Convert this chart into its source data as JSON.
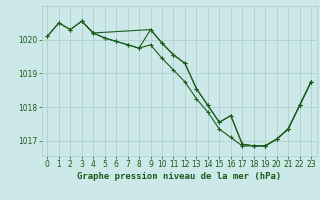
{
  "background_color": "#cce8e8",
  "grid_color": "#aacccc",
  "line_color": "#1a5c1a",
  "title": "Graphe pression niveau de la mer (hPa)",
  "xlim": [
    -0.5,
    23.5
  ],
  "ylim": [
    1016.55,
    1021.0
  ],
  "yticks": [
    1017,
    1018,
    1019,
    1020
  ],
  "xticks": [
    0,
    1,
    2,
    3,
    4,
    5,
    6,
    7,
    8,
    9,
    10,
    11,
    12,
    13,
    14,
    15,
    16,
    17,
    18,
    19,
    20,
    21,
    22,
    23
  ],
  "line_width": 0.8,
  "marker": "+",
  "marker_size": 3,
  "marker_edge_width": 0.8,
  "font_size_ticks": 5.5,
  "font_size_title": 6.5,
  "series1_x": [
    0,
    1,
    2,
    3,
    4,
    5,
    6,
    7,
    8,
    9,
    10,
    11,
    12,
    13,
    14,
    15,
    16,
    17,
    18,
    19,
    20,
    21,
    22,
    23
  ],
  "series1_y": [
    1020.1,
    1020.5,
    1020.3,
    1020.55,
    1020.2,
    1020.05,
    1019.95,
    1019.85,
    1019.75,
    1020.3,
    1019.9,
    1019.55,
    1019.3,
    1018.55,
    1018.05,
    1017.55,
    1017.75,
    1016.9,
    1016.85,
    1016.85,
    1017.05,
    1017.35,
    1018.05,
    1018.75
  ],
  "series2_x": [
    0,
    1,
    2,
    3,
    4,
    9,
    10,
    11,
    12,
    13,
    14,
    15,
    16,
    17,
    18,
    19,
    20,
    21,
    22,
    23
  ],
  "series2_y": [
    1020.1,
    1020.5,
    1020.3,
    1020.55,
    1020.2,
    1020.3,
    1019.9,
    1019.55,
    1019.3,
    1018.55,
    1018.05,
    1017.55,
    1017.75,
    1016.9,
    1016.85,
    1016.85,
    1017.05,
    1017.35,
    1018.05,
    1018.75
  ],
  "series3_x": [
    3,
    4,
    5,
    6,
    7,
    8,
    9,
    10,
    11,
    12,
    13,
    14,
    15,
    16,
    17,
    18,
    19,
    20,
    21,
    22,
    23
  ],
  "series3_y": [
    1020.55,
    1020.2,
    1020.05,
    1019.95,
    1019.85,
    1019.75,
    1019.85,
    1019.45,
    1019.1,
    1018.75,
    1018.25,
    1017.85,
    1017.35,
    1017.1,
    1016.85,
    1016.85,
    1016.85,
    1017.05,
    1017.35,
    1018.05,
    1018.75
  ]
}
